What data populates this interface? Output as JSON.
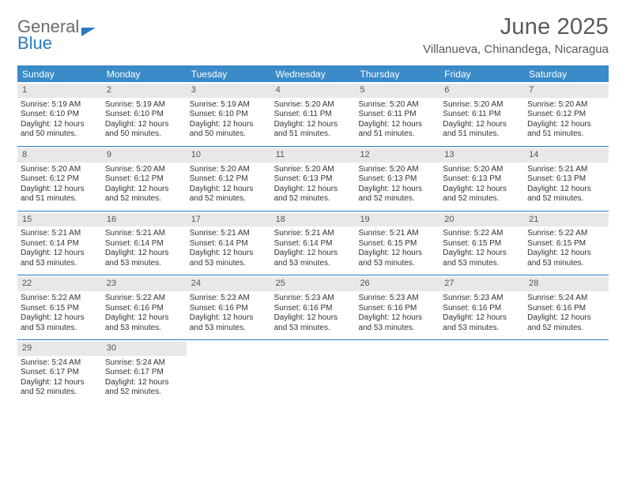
{
  "brand": {
    "word1": "General",
    "word2": "Blue"
  },
  "title": "June 2025",
  "subtitle": "Villanueva, Chinandega, Nicaragua",
  "colors": {
    "header_bar": "#3b8bc9",
    "rule": "#2b7bbf",
    "day_head_bg": "#e8e8e8",
    "title_color": "#595959"
  },
  "dow": [
    "Sunday",
    "Monday",
    "Tuesday",
    "Wednesday",
    "Thursday",
    "Friday",
    "Saturday"
  ],
  "weeks": [
    [
      {
        "n": "1",
        "sr": "5:19 AM",
        "ss": "6:10 PM",
        "dl": "12 hours and 50 minutes."
      },
      {
        "n": "2",
        "sr": "5:19 AM",
        "ss": "6:10 PM",
        "dl": "12 hours and 50 minutes."
      },
      {
        "n": "3",
        "sr": "5:19 AM",
        "ss": "6:10 PM",
        "dl": "12 hours and 50 minutes."
      },
      {
        "n": "4",
        "sr": "5:20 AM",
        "ss": "6:11 PM",
        "dl": "12 hours and 51 minutes."
      },
      {
        "n": "5",
        "sr": "5:20 AM",
        "ss": "6:11 PM",
        "dl": "12 hours and 51 minutes."
      },
      {
        "n": "6",
        "sr": "5:20 AM",
        "ss": "6:11 PM",
        "dl": "12 hours and 51 minutes."
      },
      {
        "n": "7",
        "sr": "5:20 AM",
        "ss": "6:12 PM",
        "dl": "12 hours and 51 minutes."
      }
    ],
    [
      {
        "n": "8",
        "sr": "5:20 AM",
        "ss": "6:12 PM",
        "dl": "12 hours and 51 minutes."
      },
      {
        "n": "9",
        "sr": "5:20 AM",
        "ss": "6:12 PM",
        "dl": "12 hours and 52 minutes."
      },
      {
        "n": "10",
        "sr": "5:20 AM",
        "ss": "6:12 PM",
        "dl": "12 hours and 52 minutes."
      },
      {
        "n": "11",
        "sr": "5:20 AM",
        "ss": "6:13 PM",
        "dl": "12 hours and 52 minutes."
      },
      {
        "n": "12",
        "sr": "5:20 AM",
        "ss": "6:13 PM",
        "dl": "12 hours and 52 minutes."
      },
      {
        "n": "13",
        "sr": "5:20 AM",
        "ss": "6:13 PM",
        "dl": "12 hours and 52 minutes."
      },
      {
        "n": "14",
        "sr": "5:21 AM",
        "ss": "6:13 PM",
        "dl": "12 hours and 52 minutes."
      }
    ],
    [
      {
        "n": "15",
        "sr": "5:21 AM",
        "ss": "6:14 PM",
        "dl": "12 hours and 53 minutes."
      },
      {
        "n": "16",
        "sr": "5:21 AM",
        "ss": "6:14 PM",
        "dl": "12 hours and 53 minutes."
      },
      {
        "n": "17",
        "sr": "5:21 AM",
        "ss": "6:14 PM",
        "dl": "12 hours and 53 minutes."
      },
      {
        "n": "18",
        "sr": "5:21 AM",
        "ss": "6:14 PM",
        "dl": "12 hours and 53 minutes."
      },
      {
        "n": "19",
        "sr": "5:21 AM",
        "ss": "6:15 PM",
        "dl": "12 hours and 53 minutes."
      },
      {
        "n": "20",
        "sr": "5:22 AM",
        "ss": "6:15 PM",
        "dl": "12 hours and 53 minutes."
      },
      {
        "n": "21",
        "sr": "5:22 AM",
        "ss": "6:15 PM",
        "dl": "12 hours and 53 minutes."
      }
    ],
    [
      {
        "n": "22",
        "sr": "5:22 AM",
        "ss": "6:15 PM",
        "dl": "12 hours and 53 minutes."
      },
      {
        "n": "23",
        "sr": "5:22 AM",
        "ss": "6:16 PM",
        "dl": "12 hours and 53 minutes."
      },
      {
        "n": "24",
        "sr": "5:23 AM",
        "ss": "6:16 PM",
        "dl": "12 hours and 53 minutes."
      },
      {
        "n": "25",
        "sr": "5:23 AM",
        "ss": "6:16 PM",
        "dl": "12 hours and 53 minutes."
      },
      {
        "n": "26",
        "sr": "5:23 AM",
        "ss": "6:16 PM",
        "dl": "12 hours and 53 minutes."
      },
      {
        "n": "27",
        "sr": "5:23 AM",
        "ss": "6:16 PM",
        "dl": "12 hours and 53 minutes."
      },
      {
        "n": "28",
        "sr": "5:24 AM",
        "ss": "6:16 PM",
        "dl": "12 hours and 52 minutes."
      }
    ],
    [
      {
        "n": "29",
        "sr": "5:24 AM",
        "ss": "6:17 PM",
        "dl": "12 hours and 52 minutes."
      },
      {
        "n": "30",
        "sr": "5:24 AM",
        "ss": "6:17 PM",
        "dl": "12 hours and 52 minutes."
      },
      {
        "blank": true
      },
      {
        "blank": true
      },
      {
        "blank": true
      },
      {
        "blank": true
      },
      {
        "blank": true
      }
    ]
  ],
  "labels": {
    "sunrise": "Sunrise: ",
    "sunset": "Sunset: ",
    "daylight": "Daylight: "
  }
}
